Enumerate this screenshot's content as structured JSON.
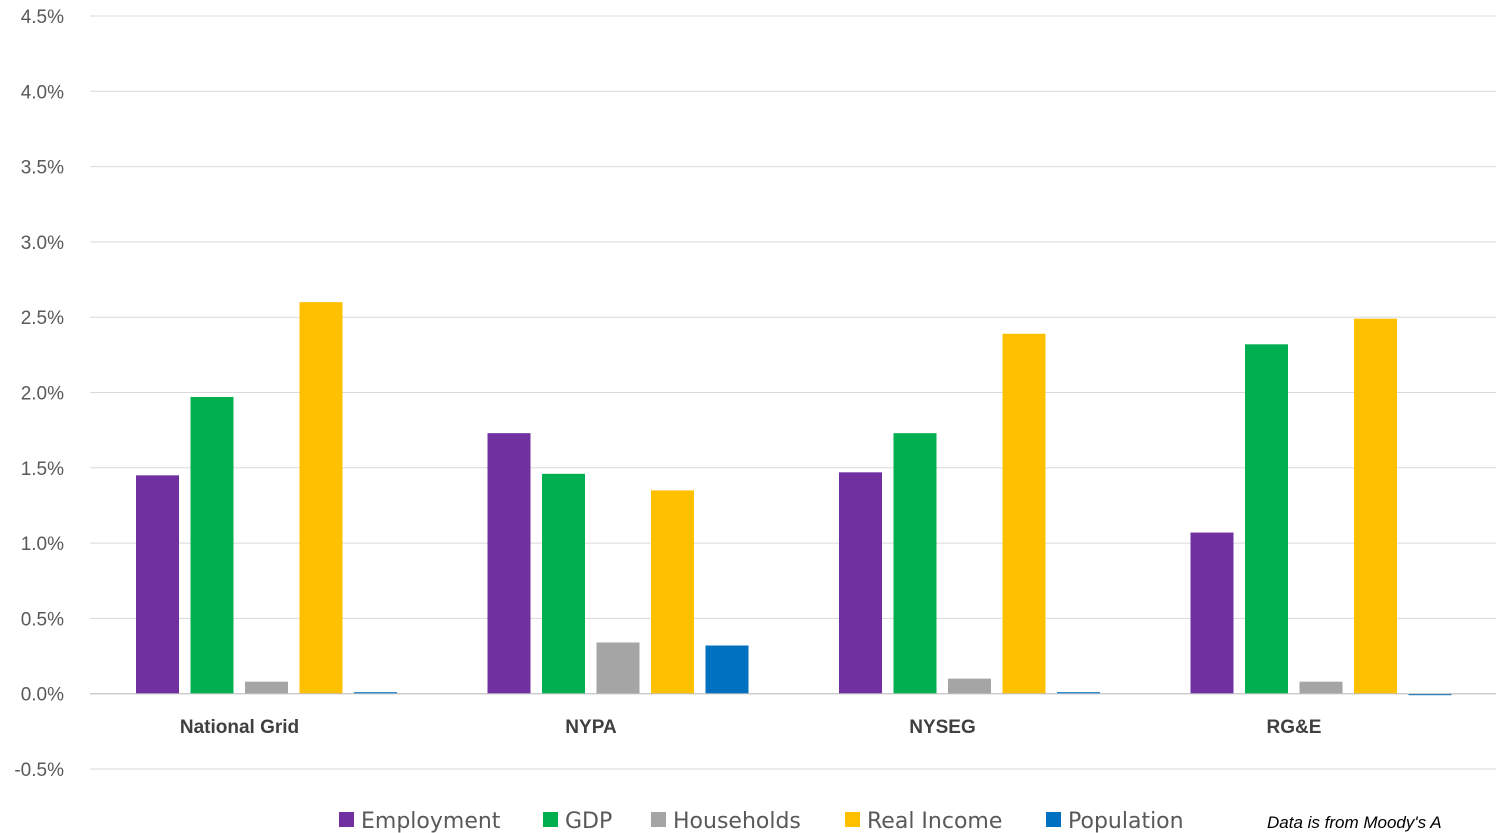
{
  "chart_data": {
    "type": "bar",
    "title": "",
    "xlabel": "",
    "ylabel": "",
    "categories": [
      "National Grid",
      "NYPA",
      "NYSEG",
      "RG&E"
    ],
    "series": [
      {
        "name": "Employment",
        "color": "#7030A0",
        "values": [
          1.45,
          1.73,
          1.47,
          1.07
        ]
      },
      {
        "name": "GDP",
        "color": "#00B050",
        "values": [
          1.97,
          1.46,
          1.73,
          2.32
        ]
      },
      {
        "name": "Households",
        "color": "#A5A5A5",
        "values": [
          0.08,
          0.34,
          0.1,
          0.08
        ]
      },
      {
        "name": "Real Income",
        "color": "#FFC000",
        "values": [
          2.6,
          1.35,
          2.39,
          2.49
        ]
      },
      {
        "name": "Population",
        "color": "#0070C0",
        "values": [
          0.0,
          0.32,
          0.01,
          -0.01
        ]
      }
    ],
    "ylim": [
      -0.5,
      4.5
    ],
    "yticks": [
      -0.5,
      0.0,
      0.5,
      1.0,
      1.5,
      2.0,
      2.5,
      3.0,
      3.5,
      4.0,
      4.5
    ],
    "ytick_labels": [
      "-0.5%",
      "0.0%",
      "0.5%",
      "1.0%",
      "1.5%",
      "2.0%",
      "2.5%",
      "3.0%",
      "3.5%",
      "4.0%",
      "4.5%"
    ],
    "grid": true,
    "legend_position": "bottom",
    "note": "Data is from Moody's A"
  }
}
